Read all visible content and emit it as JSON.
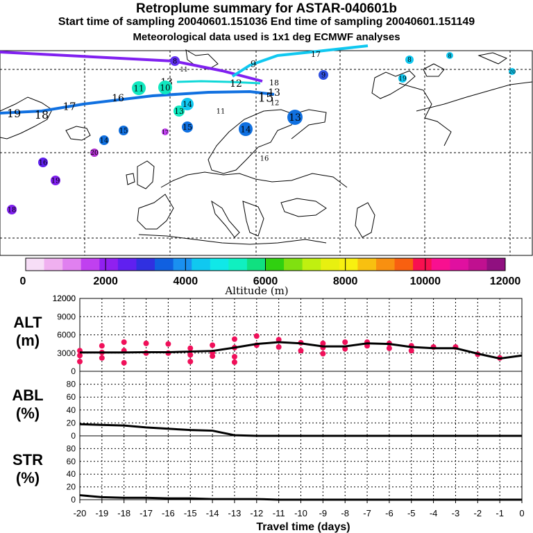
{
  "header": {
    "title": "Retroplume summary for ASTAR-040601b",
    "sampling_line": "Start time of sampling 20040601.151036     End time of sampling 20040601.151149",
    "met_line": "Meteorological data used is 1x1 deg ECMWF analyses"
  },
  "colorbar": {
    "label": "Altitude (m)",
    "ticks": [
      {
        "value": 0,
        "label": "0"
      },
      {
        "value": 2000,
        "label": "2000"
      },
      {
        "value": 4000,
        "label": "4000"
      },
      {
        "value": 6000,
        "label": "6000"
      },
      {
        "value": 8000,
        "label": "8000"
      },
      {
        "value": 10000,
        "label": "10000"
      },
      {
        "value": 12000,
        "label": "12000"
      }
    ],
    "colors": [
      "#f7def7",
      "#f0b0f0",
      "#e080f0",
      "#c040f0",
      "#9020f0",
      "#6020f0",
      "#3030e0",
      "#1060e0",
      "#1a90f0",
      "#10c8f0",
      "#10e8e8",
      "#10f0c0",
      "#10e080",
      "#30d010",
      "#80e010",
      "#c0f010",
      "#e8f010",
      "#f8f010",
      "#f8c010",
      "#f89010",
      "#f86010",
      "#f81050",
      "#f81090",
      "#e010a0",
      "#c01090",
      "#901080"
    ]
  },
  "map": {
    "trajectories": [
      {
        "name": "plume-violet",
        "color": "#8020f0"
      },
      {
        "name": "plume-cyan",
        "color": "#10c8f0"
      },
      {
        "name": "plume-blue",
        "color": "#1070e0"
      }
    ],
    "markers": [
      {
        "label": "19",
        "color": "#1070e0"
      },
      {
        "label": "18",
        "color": "#1070e0"
      },
      {
        "label": "17",
        "color": "#1070e0"
      },
      {
        "label": "16",
        "color": "#1070e0"
      },
      {
        "label": "15",
        "color": "#1070e0"
      },
      {
        "label": "14",
        "color": "#1070e0"
      },
      {
        "label": "13",
        "color": "#1070e0"
      },
      {
        "label": "12",
        "color": "#1070e0"
      },
      {
        "label": "11",
        "color": "#10e8c0"
      },
      {
        "label": "10",
        "color": "#10e8c0"
      },
      {
        "label": "8",
        "color": "#6030f0"
      },
      {
        "label": "9",
        "color": "#10c8f0"
      },
      {
        "label": "13",
        "color": "#1070e0"
      },
      {
        "label": "14",
        "color": "#1070e0"
      },
      {
        "label": "15",
        "color": "#1070e0"
      },
      {
        "label": "16",
        "color": "#6020f0"
      },
      {
        "label": "18",
        "color": "#8020f0"
      },
      {
        "label": "19",
        "color": "#8020f0"
      },
      {
        "label": "20",
        "color": "#b030d0"
      },
      {
        "label": "17",
        "color": "#c040f0"
      },
      {
        "label": "13",
        "color": "#10e8c0"
      },
      {
        "label": "9",
        "color": "#3050e0"
      },
      {
        "label": "8",
        "color": "#10c8f0"
      },
      {
        "label": "8",
        "color": "#10c8f0"
      },
      {
        "label": "20",
        "color": "#10c8f0"
      },
      {
        "label": "19",
        "color": "#10c8f0"
      },
      {
        "label": "17",
        "color": "#10c8f0"
      },
      {
        "label": "11",
        "color": "#10c8f0"
      },
      {
        "label": "11",
        "color": "#10c8f0"
      },
      {
        "label": "12",
        "color": "#10c8f0"
      },
      {
        "label": "14",
        "color": "#10c8f0"
      },
      {
        "label": "15",
        "color": "#10c8f0"
      },
      {
        "label": "13",
        "color": "#10c8f0"
      },
      {
        "label": "18",
        "color": "#10c8f0"
      },
      {
        "label": "16",
        "color": "#10c8f0"
      }
    ]
  },
  "chart_data": [
    {
      "type": "line",
      "name": "ALT",
      "ylabel": "ALT",
      "yunit": "(m)",
      "x": [
        -20,
        -19,
        -18,
        -17,
        -16,
        -15,
        -14,
        -13,
        -12,
        -11,
        -10,
        -9,
        -8,
        -7,
        -6,
        -5,
        -4,
        -3,
        -2,
        -1,
        0
      ],
      "values": [
        3100,
        3100,
        3100,
        3150,
        3150,
        3250,
        3350,
        3900,
        4500,
        4800,
        4600,
        4100,
        4100,
        4600,
        4500,
        4000,
        3800,
        3800,
        2900,
        2100,
        2600
      ],
      "ylim": [
        0,
        12000
      ],
      "yticks": [
        0,
        3000,
        6000,
        9000,
        12000
      ],
      "scatter": {
        "color": "#f0105a",
        "points": [
          {
            "x": -20,
            "y": 3400
          },
          {
            "x": -20,
            "y": 2600
          },
          {
            "x": -20,
            "y": 1600
          },
          {
            "x": -19,
            "y": 4200
          },
          {
            "x": -19,
            "y": 3100
          },
          {
            "x": -19,
            "y": 2200
          },
          {
            "x": -18,
            "y": 4800
          },
          {
            "x": -18,
            "y": 3400
          },
          {
            "x": -18,
            "y": 1400
          },
          {
            "x": -17,
            "y": 4600
          },
          {
            "x": -17,
            "y": 3000
          },
          {
            "x": -16,
            "y": 4500
          },
          {
            "x": -16,
            "y": 3000
          },
          {
            "x": -15,
            "y": 3800
          },
          {
            "x": -15,
            "y": 2700
          },
          {
            "x": -15,
            "y": 1600
          },
          {
            "x": -14,
            "y": 4300
          },
          {
            "x": -14,
            "y": 3100
          },
          {
            "x": -14,
            "y": 2500
          },
          {
            "x": -13,
            "y": 5300
          },
          {
            "x": -13,
            "y": 3900
          },
          {
            "x": -13,
            "y": 2400
          },
          {
            "x": -13,
            "y": 1500
          },
          {
            "x": -12,
            "y": 5800
          },
          {
            "x": -12,
            "y": 4300
          },
          {
            "x": -11,
            "y": 5200
          },
          {
            "x": -11,
            "y": 4000
          },
          {
            "x": -10,
            "y": 4700
          },
          {
            "x": -10,
            "y": 3400
          },
          {
            "x": -9,
            "y": 4600
          },
          {
            "x": -9,
            "y": 3900
          },
          {
            "x": -9,
            "y": 2900
          },
          {
            "x": -8,
            "y": 4800
          },
          {
            "x": -8,
            "y": 3700
          },
          {
            "x": -7,
            "y": 4800
          },
          {
            "x": -7,
            "y": 4200
          },
          {
            "x": -6,
            "y": 4600
          },
          {
            "x": -6,
            "y": 3800
          },
          {
            "x": -5,
            "y": 4200
          },
          {
            "x": -5,
            "y": 3400
          },
          {
            "x": -4,
            "y": 4000
          },
          {
            "x": -3,
            "y": 4000
          },
          {
            "x": -2,
            "y": 2800
          },
          {
            "x": -1,
            "y": 2200
          }
        ]
      }
    },
    {
      "type": "line",
      "name": "ABL",
      "ylabel": "ABL",
      "yunit": "(%)",
      "x": [
        -20,
        -19,
        -18,
        -17,
        -16,
        -15,
        -14,
        -13,
        -12,
        -11,
        -10,
        -9,
        -8,
        -7,
        -6,
        -5,
        -4,
        -3,
        -2,
        -1,
        0
      ],
      "values": [
        18,
        17,
        16,
        13,
        11,
        9,
        8,
        1,
        0,
        0,
        0,
        0,
        0,
        0,
        0,
        0,
        0,
        0,
        0,
        0,
        0
      ],
      "ylim": [
        0,
        100
      ],
      "yticks": [
        0,
        20,
        40,
        60,
        80
      ]
    },
    {
      "type": "line",
      "name": "STR",
      "ylabel": "STR",
      "yunit": "(%)",
      "x": [
        -20,
        -19,
        -18,
        -17,
        -16,
        -15,
        -14,
        -13,
        -12,
        -11,
        -10,
        -9,
        -8,
        -7,
        -6,
        -5,
        -4,
        -3,
        -2,
        -1,
        0
      ],
      "values": [
        7,
        4,
        3,
        3,
        2,
        2,
        1,
        1,
        1,
        0,
        0,
        0,
        0,
        0,
        0,
        0,
        0,
        0,
        0,
        0,
        0
      ],
      "ylim": [
        0,
        100
      ],
      "yticks": [
        0,
        20,
        40,
        60,
        80
      ],
      "xlabel": "Travel time (days)",
      "xticks": [
        -20,
        -19,
        -18,
        -17,
        -16,
        -15,
        -14,
        -13,
        -12,
        -11,
        -10,
        -9,
        -8,
        -7,
        -6,
        -5,
        -4,
        -3,
        -2,
        -1,
        0
      ]
    }
  ]
}
